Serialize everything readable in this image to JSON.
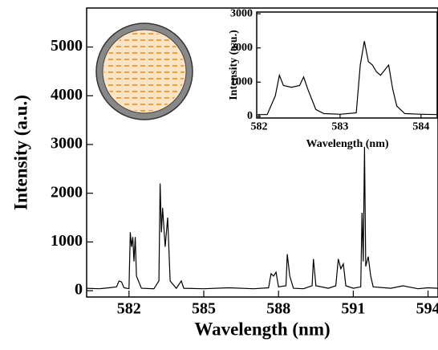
{
  "chart_data": [
    {
      "type": "line",
      "xlabel": "Wavelength (nm)",
      "ylabel": "Intensity (a.u.)",
      "color": "#000000",
      "x": [
        580.3,
        580.8,
        581.2,
        581.5,
        581.6,
        581.7,
        581.8,
        582.0,
        582.05,
        582.1,
        582.15,
        582.2,
        582.25,
        582.3,
        582.5,
        583.0,
        583.2,
        583.25,
        583.3,
        583.35,
        583.45,
        583.55,
        583.65,
        583.9,
        584.1,
        584.2,
        585.0,
        586.0,
        587.0,
        587.6,
        587.7,
        587.8,
        587.9,
        588.0,
        588.3,
        588.35,
        588.45,
        588.6,
        589.0,
        589.35,
        589.4,
        589.5,
        590.0,
        590.3,
        590.4,
        590.5,
        590.6,
        590.7,
        591.0,
        591.3,
        591.35,
        591.4,
        591.45,
        591.5,
        591.6,
        591.7,
        591.8,
        592.5,
        593.0,
        593.2,
        593.6,
        594.0,
        594.4
      ],
      "values": [
        50,
        40,
        60,
        80,
        200,
        180,
        60,
        40,
        1200,
        900,
        1100,
        600,
        1100,
        300,
        50,
        40,
        200,
        2200,
        1200,
        1700,
        900,
        1500,
        200,
        50,
        200,
        50,
        40,
        60,
        40,
        60,
        350,
        300,
        380,
        80,
        100,
        750,
        300,
        50,
        40,
        100,
        650,
        100,
        50,
        100,
        650,
        450,
        550,
        100,
        50,
        80,
        1600,
        600,
        2950,
        500,
        700,
        300,
        80,
        50,
        100,
        80,
        40,
        60,
        50
      ],
      "xlim": [
        580.3,
        594.4
      ],
      "xticks": [
        582,
        585,
        588,
        591,
        594
      ],
      "ylim": [
        -130,
        5800
      ],
      "yticks": [
        0,
        1000,
        2000,
        3000,
        4000,
        5000
      ]
    },
    {
      "type": "line",
      "xlabel": "Wavelength (nm)",
      "ylabel": "Intensity (a.u.)",
      "color": "#000000",
      "x": [
        581.97,
        582.1,
        582.2,
        582.25,
        582.3,
        582.4,
        582.5,
        582.55,
        582.6,
        582.7,
        582.8,
        583.0,
        583.2,
        583.25,
        583.3,
        583.35,
        583.4,
        583.45,
        583.5,
        583.6,
        583.65,
        583.7,
        583.8,
        584.0,
        584.2
      ],
      "values": [
        50,
        50,
        600,
        1200,
        900,
        850,
        900,
        1150,
        800,
        200,
        80,
        60,
        100,
        1500,
        2200,
        1600,
        1500,
        1300,
        1200,
        1500,
        800,
        300,
        80,
        60,
        50
      ],
      "xlim": [
        581.97,
        584.2
      ],
      "xticks": [
        582,
        583,
        584
      ],
      "ylim": [
        -50,
        3050
      ],
      "yticks": [
        0,
        1000,
        2000,
        3000
      ]
    }
  ]
}
